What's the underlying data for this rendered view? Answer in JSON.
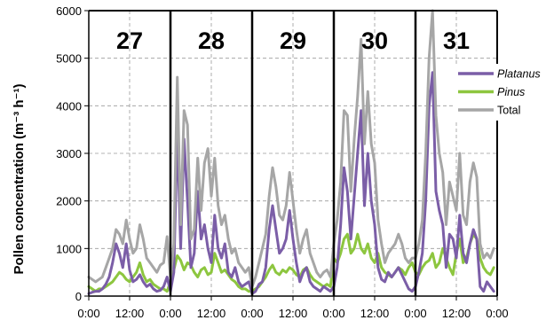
{
  "chart_data": {
    "type": "line",
    "ylabel": "Pollen concentration (m⁻³ h⁻¹)",
    "ylim": [
      0,
      6000
    ],
    "yticks": [
      0,
      1000,
      2000,
      3000,
      4000,
      5000,
      6000
    ],
    "xticks": [
      "0:00",
      "12:00",
      "0:00",
      "12:00",
      "0:00",
      "12:00",
      "0:00",
      "12:00",
      "0:00",
      "12:00",
      "0:00"
    ],
    "days": [
      "27",
      "28",
      "29",
      "30",
      "31"
    ],
    "hours_per_day": 24,
    "grid": true,
    "legend_position": "right",
    "series": [
      {
        "name": "Platanus",
        "color": "#7b5ea7",
        "values": [
          50,
          80,
          100,
          100,
          150,
          250,
          400,
          700,
          1100,
          900,
          600,
          1100,
          550,
          300,
          350,
          450,
          300,
          200,
          250,
          150,
          100,
          120,
          200,
          400,
          100,
          500,
          3500,
          1000,
          3300,
          2000,
          600,
          900,
          2200,
          1200,
          1500,
          1000,
          700,
          1700,
          1000,
          800,
          1100,
          500,
          400,
          600,
          300,
          200,
          250,
          300,
          50,
          100,
          250,
          300,
          600,
          1400,
          1900,
          1400,
          900,
          1000,
          1200,
          1800,
          1200,
          700,
          300,
          500,
          600,
          300,
          200,
          150,
          100,
          200,
          150,
          100,
          200,
          600,
          1500,
          2700,
          2200,
          1200,
          2100,
          3000,
          3900,
          1900,
          3000,
          2000,
          1500,
          600,
          350,
          300,
          500,
          400,
          500,
          600,
          450,
          300,
          150,
          100,
          200,
          500,
          900,
          2000,
          4000,
          4700,
          2200,
          1800,
          1500,
          600,
          1300,
          1200,
          800,
          1700,
          900,
          700,
          1100,
          1400,
          1200,
          200,
          100,
          300,
          200,
          100
        ]
      },
      {
        "name": "Pinus",
        "color": "#8dc63f",
        "values": [
          200,
          150,
          100,
          150,
          150,
          200,
          250,
          300,
          400,
          500,
          450,
          350,
          300,
          400,
          500,
          700,
          450,
          300,
          350,
          250,
          200,
          150,
          150,
          100,
          300,
          550,
          850,
          750,
          550,
          700,
          650,
          500,
          400,
          550,
          600,
          450,
          500,
          900,
          700,
          500,
          550,
          450,
          350,
          300,
          200,
          150,
          150,
          100,
          100,
          150,
          200,
          300,
          400,
          550,
          650,
          500,
          450,
          550,
          500,
          600,
          550,
          450,
          400,
          550,
          600,
          450,
          350,
          300,
          250,
          200,
          250,
          200,
          800,
          700,
          900,
          1200,
          1300,
          900,
          1000,
          1300,
          1000,
          900,
          1100,
          800,
          700,
          900,
          600,
          500,
          450,
          400,
          500,
          600,
          550,
          450,
          600,
          700,
          500,
          450,
          600,
          700,
          750,
          900,
          600,
          700,
          1000,
          800,
          600,
          450,
          900,
          1200,
          700,
          800,
          1100,
          1300,
          1200,
          800,
          600,
          500,
          450,
          600
        ]
      },
      {
        "name": "Total",
        "color": "#a6a6a6",
        "values": [
          400,
          350,
          300,
          350,
          400,
          600,
          800,
          1000,
          1400,
          1300,
          1100,
          1600,
          1200,
          900,
          1000,
          1500,
          1200,
          800,
          700,
          600,
          500,
          650,
          700,
          1250,
          400,
          1100,
          4600,
          1500,
          3900,
          3600,
          1200,
          1400,
          2900,
          1800,
          2800,
          3100,
          2100,
          2900,
          1900,
          1500,
          1700,
          1200,
          900,
          1000,
          700,
          600,
          500,
          600,
          200,
          400,
          700,
          1000,
          1300,
          2100,
          2700,
          2300,
          1700,
          1600,
          1900,
          2600,
          2000,
          1400,
          900,
          1200,
          1400,
          900,
          700,
          500,
          400,
          500,
          550,
          400,
          1100,
          1600,
          2400,
          3900,
          3800,
          2200,
          3300,
          4200,
          5400,
          3200,
          4300,
          3200,
          2800,
          1600,
          1100,
          700,
          900,
          1000,
          1100,
          1300,
          1100,
          800,
          700,
          800,
          800,
          1100,
          1600,
          3000,
          5000,
          6000,
          3800,
          3000,
          2600,
          1500,
          2400,
          2100,
          1800,
          3000,
          1700,
          1500,
          2400,
          2800,
          2500,
          1100,
          800,
          900,
          800,
          1000
        ]
      }
    ]
  }
}
